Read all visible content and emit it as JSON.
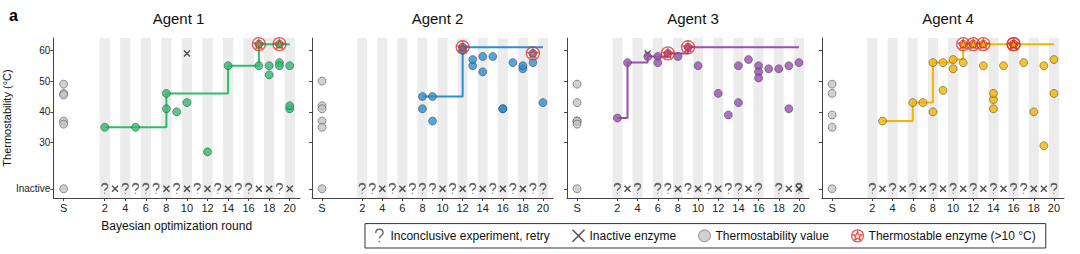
{
  "chart_data": [
    {
      "type": "scatter",
      "title": "Agent 1",
      "annotation": "a",
      "xlabel": "Bayesian optimization round",
      "ylabel": "Thermostability (°C)",
      "xlim": [
        -3,
        21
      ],
      "xticks": [
        {
          "value": -2,
          "label": "S"
        },
        2,
        4,
        6,
        8,
        10,
        12,
        14,
        16,
        18,
        20
      ],
      "ylim": [
        12,
        64
      ],
      "yticks": [
        {
          "value": 15,
          "label": "Inactive"
        },
        30,
        40,
        50,
        60
      ],
      "series": [
        {
          "name": "Inconclusive experiment, retry",
          "marker": "question",
          "color": "#444444",
          "x": [
            2,
            4,
            5,
            6,
            7,
            9,
            11,
            13,
            15,
            16,
            19
          ],
          "values": [
            15,
            15,
            15,
            15,
            15,
            15,
            15,
            15,
            15,
            15,
            15
          ]
        },
        {
          "name": "Inactive enzyme",
          "marker": "cross",
          "color": "#222222",
          "x": [
            3,
            8,
            10,
            10,
            12,
            14,
            17,
            18,
            20
          ],
          "values": [
            15,
            15,
            15,
            59,
            15,
            15,
            15,
            15,
            15
          ]
        },
        {
          "name": "Thermostability value",
          "marker": "circle",
          "color": "#c4c4c4",
          "x": [
            -2,
            -2,
            -2,
            -2,
            -2,
            -2
          ],
          "values": [
            49,
            46,
            45.5,
            37,
            36,
            15
          ]
        },
        {
          "type": "line",
          "line_style": "step",
          "color": "#2dbd6e",
          "x": [
            2,
            8,
            14,
            17,
            20
          ],
          "values": [
            35,
            46,
            55,
            62,
            62
          ]
        },
        {
          "type": "scatter",
          "marker": "circle",
          "color": "#2dbd6e",
          "x": [
            2,
            5,
            8,
            8,
            9,
            10,
            12,
            14,
            17,
            17,
            18,
            18,
            19,
            19,
            19,
            20,
            20,
            20
          ],
          "values": [
            35,
            35,
            46,
            41,
            40,
            43,
            27,
            55,
            62,
            55,
            52,
            55,
            62,
            56,
            55,
            55,
            41,
            42
          ]
        },
        {
          "name": "Thermostable enzyme (>10 °C)",
          "marker": "star_circle",
          "color": "#e0302a",
          "x": [
            17,
            19
          ],
          "values": [
            62,
            62
          ]
        }
      ]
    },
    {
      "type": "scatter",
      "title": "Agent 2",
      "tick_labels": "x",
      "xlim": [
        -3,
        21
      ],
      "xticks": [
        {
          "value": -2,
          "label": "S"
        },
        2,
        4,
        6,
        8,
        10,
        12,
        14,
        16,
        18,
        20
      ],
      "ylim": [
        12,
        64
      ],
      "yticks": [
        {
          "value": 15,
          "label": "Inactive"
        },
        30,
        40,
        50,
        60
      ],
      "series": [
        {
          "name": "Inconclusive experiment, retry",
          "marker": "question",
          "color": "#444444",
          "x": [
            2,
            3,
            5,
            7,
            8,
            9,
            11,
            13,
            15,
            17,
            19,
            20
          ],
          "values": [
            15,
            15,
            15,
            15,
            15,
            15,
            15,
            15,
            15,
            15,
            15,
            15
          ]
        },
        {
          "name": "Inactive enzyme",
          "marker": "cross",
          "color": "#222222",
          "x": [
            4,
            6,
            10,
            12,
            14,
            16,
            18
          ],
          "values": [
            15,
            15,
            15,
            15,
            15,
            15,
            15
          ]
        },
        {
          "name": "Thermostability value",
          "marker": "circle",
          "color": "#c4c4c4",
          "x": [
            -2,
            -2,
            -2,
            -2,
            -2,
            -2
          ],
          "values": [
            50,
            42,
            41,
            37,
            35,
            15
          ]
        },
        {
          "type": "line",
          "line_style": "step",
          "color": "#2a8fd4",
          "x": [
            8,
            12,
            20
          ],
          "values": [
            45,
            61,
            61
          ]
        },
        {
          "type": "scatter",
          "marker": "circle",
          "color": "#2a8fd4",
          "x": [
            8,
            8,
            9,
            9,
            12,
            12,
            13,
            13,
            14,
            14,
            15,
            16,
            16,
            17,
            18,
            18,
            19,
            19,
            20
          ],
          "values": [
            45,
            41,
            45,
            37,
            61,
            60,
            55,
            57,
            58,
            53,
            58,
            41,
            41,
            56,
            54,
            55,
            56,
            59,
            43
          ]
        },
        {
          "name": "Thermostable enzyme (>10 °C)",
          "marker": "star_circle",
          "color": "#e0302a",
          "x": [
            12,
            19
          ],
          "values": [
            61,
            59
          ]
        }
      ]
    },
    {
      "type": "scatter",
      "title": "Agent 3",
      "tick_labels": "x",
      "xlim": [
        -3,
        21
      ],
      "xticks": [
        {
          "value": -2,
          "label": "S"
        },
        2,
        4,
        6,
        8,
        10,
        12,
        14,
        16,
        18,
        20
      ],
      "ylim": [
        12,
        64
      ],
      "yticks": [
        {
          "value": 15,
          "label": "Inactive"
        },
        30,
        40,
        50,
        60
      ],
      "series": [
        {
          "name": "Inconclusive experiment, retry",
          "marker": "question",
          "color": "#444444",
          "x": [
            2,
            4,
            6,
            7,
            9,
            11,
            13,
            14,
            16,
            18,
            20
          ],
          "values": [
            15,
            15,
            15,
            15,
            15,
            15,
            15,
            15,
            15,
            15,
            15
          ]
        },
        {
          "name": "Inactive enzyme",
          "marker": "cross",
          "color": "#222222",
          "x": [
            3,
            5,
            8,
            10,
            12,
            15,
            19,
            20
          ],
          "values": [
            15,
            59,
            15,
            15,
            15,
            15,
            15,
            15
          ]
        },
        {
          "name": "Thermostability value",
          "marker": "circle",
          "color": "#c4c4c4",
          "x": [
            -2,
            -2,
            -2,
            -2,
            -2,
            -2
          ],
          "values": [
            49,
            43,
            37,
            37,
            36,
            15
          ]
        },
        {
          "type": "line",
          "line_style": "step",
          "color": "#9b4fb0",
          "x": [
            2,
            3,
            5,
            7,
            9,
            20
          ],
          "values": [
            38,
            56,
            58,
            59,
            61,
            61
          ]
        },
        {
          "type": "scatter",
          "marker": "circle",
          "color": "#9b4fb0",
          "x": [
            2,
            3,
            5,
            6,
            6,
            7,
            8,
            9,
            10,
            12,
            13,
            14,
            14,
            15,
            16,
            16,
            16,
            17,
            18,
            19,
            19,
            20
          ],
          "values": [
            38,
            56,
            58,
            58,
            56,
            59,
            58,
            61,
            55,
            46,
            39,
            43,
            55,
            57,
            55,
            53,
            51,
            54,
            54,
            41,
            55,
            56
          ]
        },
        {
          "name": "Thermostable enzyme (>10 °C)",
          "marker": "star_circle",
          "color": "#e0302a",
          "x": [
            7,
            9
          ],
          "values": [
            59,
            61
          ]
        }
      ]
    },
    {
      "type": "scatter",
      "title": "Agent 4",
      "tick_labels": "x",
      "legend": "bottom",
      "xlim": [
        -3,
        21
      ],
      "xticks": [
        {
          "value": -2,
          "label": "S"
        },
        2,
        4,
        6,
        8,
        10,
        12,
        14,
        16,
        18,
        20
      ],
      "ylim": [
        12,
        64
      ],
      "yticks": [
        {
          "value": 15,
          "label": "Inactive"
        },
        30,
        40,
        50,
        60
      ],
      "series": [
        {
          "name": "Inconclusive experiment, retry",
          "marker": "question",
          "color": "#444444",
          "x": [
            2,
            4,
            6,
            8,
            10,
            12,
            14,
            16,
            17,
            20
          ],
          "values": [
            15,
            15,
            15,
            15,
            15,
            15,
            15,
            15,
            15,
            15
          ]
        },
        {
          "name": "Inactive enzyme",
          "marker": "cross",
          "color": "#222222",
          "x": [
            3,
            5,
            7,
            9,
            11,
            13,
            15,
            18,
            19
          ],
          "values": [
            15,
            15,
            15,
            15,
            15,
            15,
            15,
            15,
            15
          ]
        },
        {
          "name": "Thermostability value",
          "marker": "circle",
          "color": "#c4c4c4",
          "x": [
            -2,
            -2,
            -2,
            -2,
            -2
          ],
          "values": [
            49,
            46,
            39,
            35,
            15
          ]
        },
        {
          "type": "line",
          "line_style": "step",
          "color": "#f5b400",
          "x": [
            3,
            6,
            8,
            10,
            11,
            20
          ],
          "values": [
            37,
            43,
            56,
            57,
            62,
            62
          ]
        },
        {
          "type": "scatter",
          "marker": "circle",
          "color": "#f5b400",
          "x": [
            3,
            6,
            7,
            8,
            8,
            9,
            9,
            10,
            10,
            11,
            11,
            12,
            13,
            13,
            14,
            14,
            14,
            15,
            16,
            16,
            17,
            18,
            19,
            19,
            20,
            20
          ],
          "values": [
            37,
            43,
            43,
            56,
            40,
            47,
            56,
            57,
            54,
            62,
            56,
            62,
            62,
            55,
            41,
            44,
            46,
            55,
            62,
            62,
            56,
            40,
            55,
            29,
            57,
            46
          ]
        },
        {
          "name": "Thermostable enzyme (>10 °C)",
          "marker": "star_circle",
          "color": "#e0302a",
          "x": [
            11,
            12,
            13,
            16,
            16
          ],
          "values": [
            62,
            62,
            62,
            62,
            62
          ]
        }
      ]
    }
  ]
}
